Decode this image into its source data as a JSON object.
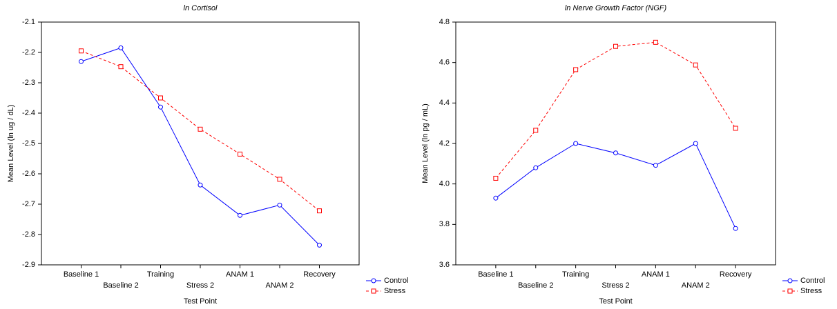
{
  "chart_data": [
    {
      "type": "line",
      "title": "ln Cortisol",
      "x_label": "Test Point",
      "y_label": "Mean Level (ln ug / dL)",
      "categories": [
        "Baseline 1",
        "Baseline 2",
        "Training",
        "Stress 2",
        "ANAM 1",
        "ANAM 2",
        "Recovery"
      ],
      "series": [
        {
          "name": "Control",
          "color": "#0000ff",
          "marker": "circle",
          "dashed": false,
          "values": [
            -2.23,
            -2.185,
            -2.38,
            -2.637,
            -2.737,
            -2.703,
            -2.835
          ]
        },
        {
          "name": "Stress",
          "color": "#ff0000",
          "marker": "square",
          "dashed": true,
          "values": [
            -2.195,
            -2.247,
            -2.35,
            -2.453,
            -2.535,
            -2.618,
            -2.722
          ]
        }
      ],
      "ylim": [
        -2.9,
        -2.1
      ],
      "yticks": [
        -2.9,
        -2.8,
        -2.7,
        -2.6,
        -2.5,
        -2.4,
        -2.3,
        -2.2,
        -2.1
      ],
      "legend": "lower right outside"
    },
    {
      "type": "line",
      "title": "ln Nerve Growth Factor (NGF)",
      "x_label": "Test Point",
      "y_label": "Mean Level (ln pg / mL)",
      "categories": [
        "Baseline 1",
        "Baseline 2",
        "Training",
        "Stress 2",
        "ANAM 1",
        "ANAM 2",
        "Recovery"
      ],
      "series": [
        {
          "name": "Control",
          "color": "#0000ff",
          "marker": "circle",
          "dashed": false,
          "values": [
            3.93,
            4.08,
            4.2,
            4.153,
            4.092,
            4.2,
            3.78
          ]
        },
        {
          "name": "Stress",
          "color": "#ff0000",
          "marker": "square",
          "dashed": true,
          "values": [
            4.028,
            4.265,
            4.565,
            4.68,
            4.7,
            4.588,
            4.275
          ]
        }
      ],
      "ylim": [
        3.6,
        4.8
      ],
      "yticks": [
        3.6,
        3.8,
        {
          "value": 4,
          "label": "4.0"
        },
        4.2,
        4.4,
        4.6,
        4.8
      ],
      "legend": "lower right outside"
    }
  ]
}
